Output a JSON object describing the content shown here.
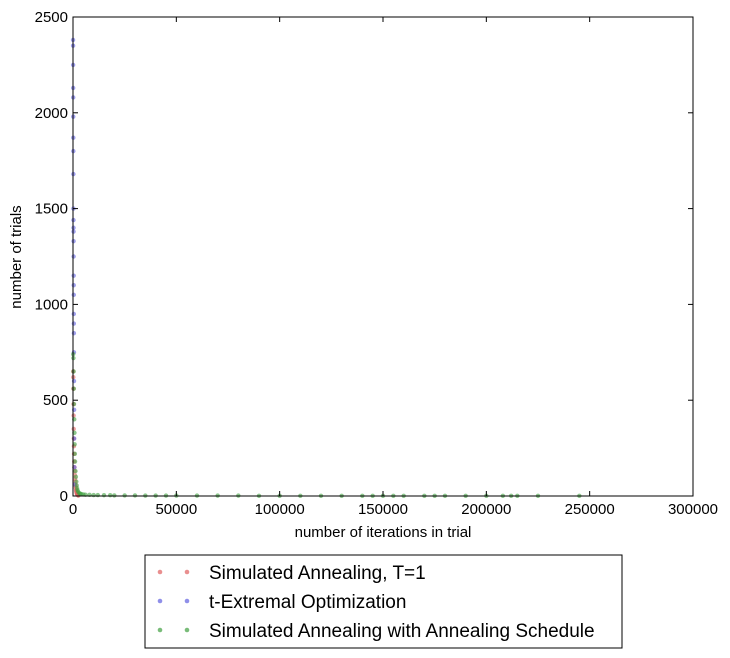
{
  "chart_data": {
    "type": "scatter",
    "xlabel": "number of iterations in trial",
    "ylabel": "number of trials",
    "xlim": [
      0,
      300000
    ],
    "ylim": [
      0,
      2500
    ],
    "x_ticks": [
      "0",
      "50000",
      "100000",
      "150000",
      "200000",
      "250000",
      "300000"
    ],
    "y_ticks": [
      "0",
      "500",
      "1000",
      "1500",
      "2000",
      "2500"
    ],
    "grid": false,
    "legend_position": "below",
    "series": [
      {
        "name": "Simulated Annealing, T=1",
        "color": "#e06060",
        "x": [
          100,
          150,
          200,
          250,
          300,
          350,
          400,
          450,
          500,
          600,
          700,
          800,
          900,
          1000,
          1100,
          1200,
          1300,
          1400,
          1500,
          1600,
          1700,
          1800,
          1900,
          2000,
          2200,
          2400,
          2600
        ],
        "y": [
          650,
          620,
          560,
          480,
          420,
          350,
          300,
          260,
          220,
          180,
          150,
          130,
          110,
          90,
          75,
          60,
          50,
          40,
          30,
          25,
          20,
          15,
          12,
          10,
          7,
          4,
          2
        ]
      },
      {
        "name": "t-Extremal Optimization",
        "color": "#6060e0",
        "x": [
          30,
          50,
          70,
          90,
          110,
          130,
          150,
          170,
          190,
          210,
          230,
          250,
          270,
          290,
          310,
          330,
          350,
          370,
          390,
          410,
          440,
          470,
          500,
          550,
          600,
          700,
          800
        ],
        "y": [
          2380,
          2350,
          2250,
          2130,
          2080,
          1980,
          1870,
          1800,
          1680,
          1500,
          1440,
          1400,
          1380,
          1330,
          1250,
          1150,
          1100,
          1050,
          950,
          900,
          850,
          750,
          600,
          450,
          300,
          150,
          60
        ]
      },
      {
        "name": "Simulated Annealing with Annealing Schedule",
        "color": "#40a040",
        "x": [
          100,
          200,
          300,
          400,
          500,
          600,
          700,
          800,
          900,
          1000,
          1200,
          1400,
          1600,
          1800,
          2000,
          2200,
          2500,
          3000,
          3500,
          4000,
          5000,
          6000,
          8000,
          10000,
          12000,
          15000,
          18000,
          20000,
          25000,
          30000,
          35000,
          40000,
          45000,
          50000,
          60000,
          70000,
          80000,
          90000,
          100000,
          110000,
          120000,
          130000,
          140000,
          145000,
          150000,
          155000,
          160000,
          170000,
          175000,
          180000,
          190000,
          200000,
          208000,
          212000,
          215000,
          225000,
          245000
        ],
        "y": [
          740,
          720,
          650,
          560,
          480,
          400,
          330,
          270,
          220,
          180,
          130,
          100,
          75,
          55,
          40,
          30,
          22,
          15,
          12,
          10,
          8,
          7,
          6,
          5,
          5,
          4,
          4,
          3,
          3,
          3,
          2,
          2,
          2,
          2,
          2,
          2,
          2,
          1,
          1,
          1,
          1,
          1,
          1,
          1,
          1,
          1,
          1,
          1,
          1,
          1,
          1,
          1,
          1,
          1,
          1,
          1,
          1
        ]
      }
    ]
  }
}
